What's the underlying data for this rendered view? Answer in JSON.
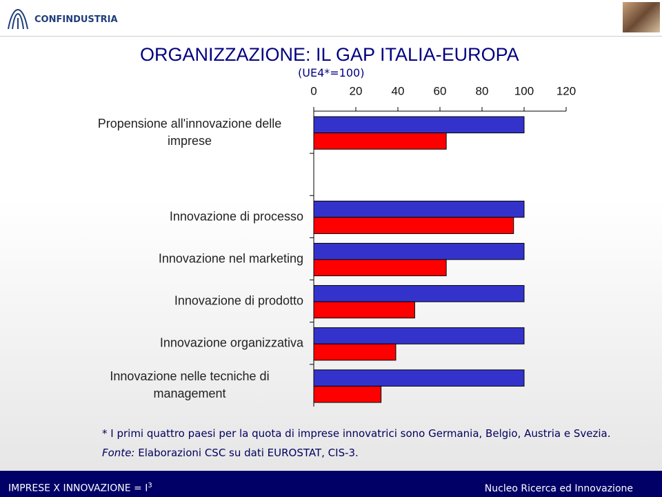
{
  "header": {
    "logo": "CONFINDUSTRIA"
  },
  "chart_data": {
    "type": "hbar",
    "title": "ORGANIZZAZIONE: IL GAP ITALIA-EUROPA",
    "subtitle": "(UE4*=100)",
    "categories": [
      "Propensione all'innovazione delle imprese",
      null,
      "Innovazione di processo",
      "Innovazione nel marketing",
      "Innovazione di prodotto",
      "Innovazione organizzativa",
      "Innovazione nelle tecniche di management"
    ],
    "series": [
      {
        "color": "#3333cc",
        "values": [
          100,
          null,
          100,
          100,
          100,
          100,
          100
        ]
      },
      {
        "color": "#ff0000",
        "values": [
          63,
          null,
          95,
          63,
          48,
          39,
          32
        ]
      }
    ],
    "xlim": [
      0,
      120
    ],
    "xticks": [
      0,
      20,
      40,
      60,
      80,
      100,
      120
    ]
  },
  "notes": {
    "asterisk": "* I primi quattro paesi per la quota di imprese innovatrici sono Germania, Belgio, Austria e Svezia.",
    "source_label": "Fonte:",
    "source": "Elaborazioni CSC su dati EUROSTAT, CIS-3."
  },
  "footer": {
    "left": "IMPRESE X INNOVAZIONE = I",
    "left_sup": "3",
    "right": "Nucleo Ricerca ed Innovazione"
  }
}
